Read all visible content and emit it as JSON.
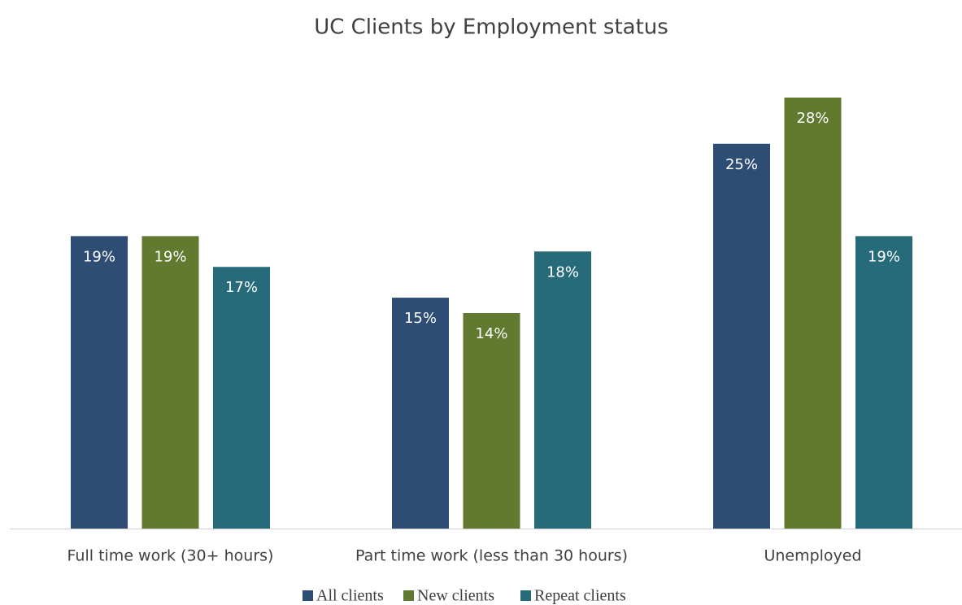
{
  "chart_data": {
    "type": "bar",
    "title": "UC Clients by Employment status",
    "categories": [
      "Full time work (30+ hours)",
      "Part time work (less than 30 hours)",
      "Unemployed"
    ],
    "series": [
      {
        "name": "All clients",
        "color": "#2e4d74",
        "values": [
          19,
          15,
          25
        ],
        "value_labels": [
          "19%",
          "15%",
          "25%"
        ]
      },
      {
        "name": "New clients",
        "color": "#627a30",
        "values": [
          19,
          14,
          28
        ],
        "value_labels": [
          "19%",
          "14%",
          "28%"
        ]
      },
      {
        "name": "Repeat clients",
        "color": "#276a7a",
        "values": [
          17,
          18,
          19
        ],
        "value_labels": [
          "17%",
          "18%",
          "19%"
        ]
      }
    ],
    "legend": "bottom"
  }
}
